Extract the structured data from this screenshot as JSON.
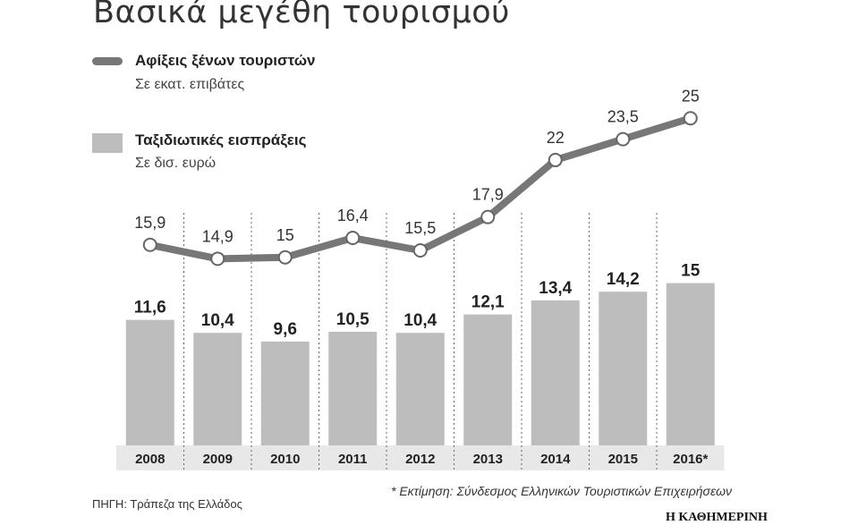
{
  "title": "Βασικά μεγέθη τουρισμού",
  "legend": {
    "line_name": "Αφίξεις ξένων τουριστών",
    "line_unit": "Σε εκατ. επιβάτες",
    "bar_name": "Ταξιδιωτικές εισπράξεις",
    "bar_unit": "Σε δισ. ευρώ"
  },
  "chart_data": {
    "type": "bar",
    "categories": [
      "2008",
      "2009",
      "2010",
      "2011",
      "2012",
      "2013",
      "2014",
      "2015",
      "2016*"
    ],
    "series": [
      {
        "name": "Ταξιδιωτικές εισπράξεις",
        "type": "bar",
        "values": [
          11.6,
          10.4,
          9.6,
          10.5,
          10.4,
          12.1,
          13.4,
          14.2,
          15
        ],
        "labels": [
          "11,6",
          "10,4",
          "9,6",
          "10,5",
          "10,4",
          "12,1",
          "13,4",
          "14,2",
          "15"
        ],
        "color": "#bdbdbd"
      },
      {
        "name": "Αφίξεις ξένων τουριστών",
        "type": "line",
        "values": [
          15.9,
          14.9,
          15,
          16.4,
          15.5,
          17.9,
          22,
          23.5,
          25
        ],
        "labels": [
          "15,9",
          "14,9",
          "15",
          "16,4",
          "15,5",
          "17,9",
          "22",
          "23,5",
          "25"
        ],
        "color": "#777777"
      }
    ],
    "grid": "vertical dotted separators"
  },
  "colors": {
    "category_band": "#e8e8e8",
    "bar": "#bdbdbd",
    "line": "#777777",
    "text": "#222222"
  },
  "footer": {
    "source": "ΠΗΓΗ: Τράπεζα της Ελλάδος",
    "note": "* Εκτίμηση: Σύνδεσμος Ελληνικών Τουριστικών Επιχειρήσεων",
    "brand": "Η ΚΑΘΗΜΕΡΙΝΗ"
  }
}
